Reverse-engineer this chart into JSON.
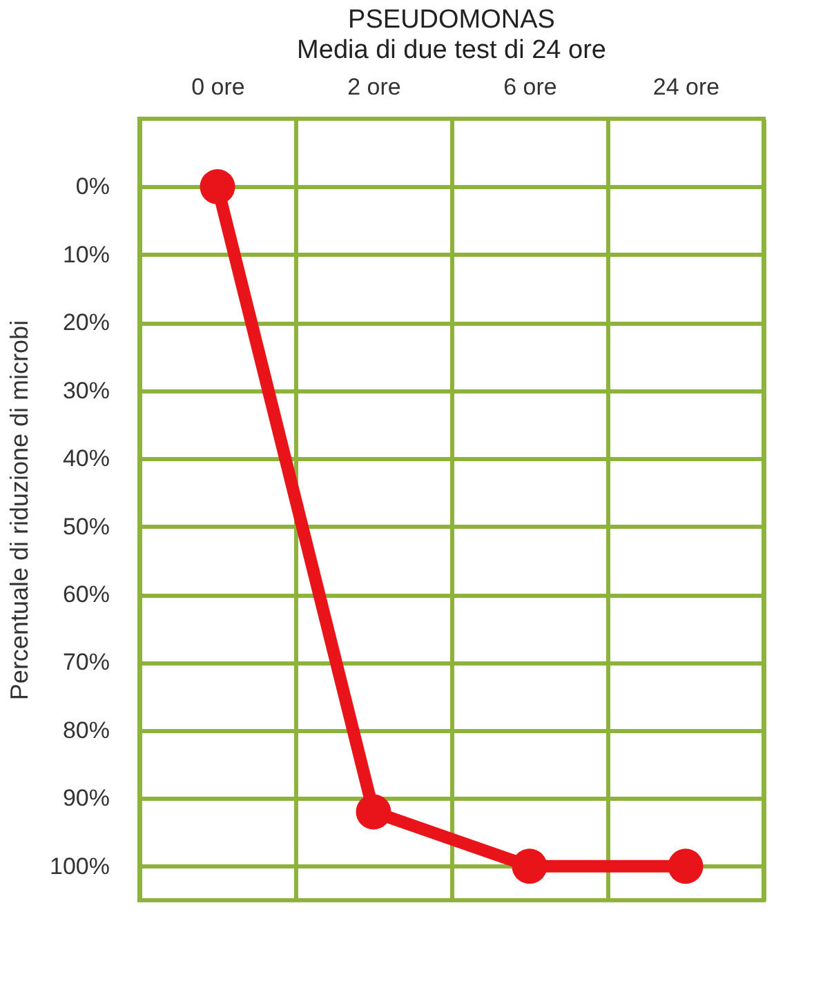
{
  "chart_data": {
    "type": "line",
    "title": "PSEUDOMONAS",
    "subtitle": "Media di due test di 24 ore",
    "ylabel": "Percentuale di riduzione di microbi",
    "categories": [
      "0 ore",
      "2 ore",
      "6 ore",
      "24 ore"
    ],
    "series": [
      {
        "color": "#e8141a",
        "values": [
          0,
          92,
          100,
          100
        ]
      }
    ],
    "ylim": [
      105,
      -10
    ],
    "yticks": [
      {
        "value": 0,
        "label": "0%"
      },
      {
        "value": 10,
        "label": "10%"
      },
      {
        "value": 20,
        "label": "20%"
      },
      {
        "value": 30,
        "label": "30%"
      },
      {
        "value": 40,
        "label": "40%"
      },
      {
        "value": 50,
        "label": "50%"
      },
      {
        "value": 60,
        "label": "60%"
      },
      {
        "value": 70,
        "label": "70%"
      },
      {
        "value": 80,
        "label": "80%"
      },
      {
        "value": 90,
        "label": "90%"
      },
      {
        "value": 100,
        "label": "100%"
      }
    ],
    "grid": true,
    "marker": "circle",
    "line_style": "solid",
    "legend": false
  }
}
